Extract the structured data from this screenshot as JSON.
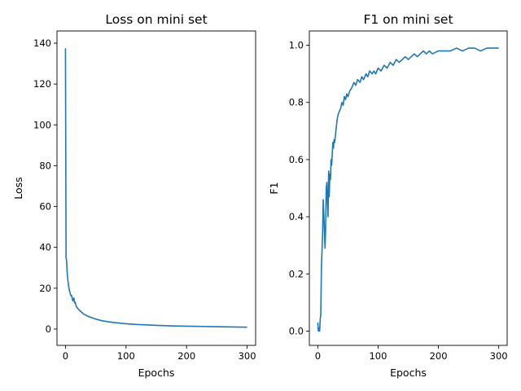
{
  "chart_data": [
    {
      "type": "line",
      "title": "Loss on mini set",
      "xlabel": "Epochs",
      "ylabel": "Loss",
      "xlim": [
        -14,
        314
      ],
      "ylim": [
        -8,
        146
      ],
      "xticks": [
        0,
        100,
        200,
        300
      ],
      "yticks": [
        0,
        20,
        40,
        60,
        80,
        100,
        120,
        140
      ],
      "color": "#1f77b4",
      "grid": false,
      "series": [
        {
          "x": [
            0,
            1,
            2,
            3,
            4,
            5,
            6,
            7,
            8,
            9,
            10,
            11,
            12,
            13,
            14,
            15,
            16,
            17,
            18,
            19,
            20,
            22,
            24,
            26,
            28,
            30,
            33,
            36,
            40,
            45,
            50,
            55,
            60,
            70,
            80,
            90,
            100,
            110,
            120,
            130,
            140,
            150,
            160,
            170,
            180,
            190,
            200,
            220,
            240,
            260,
            280,
            300
          ],
          "y": [
            137.5,
            35,
            33,
            27,
            24,
            21.5,
            19.8,
            18.3,
            17.2,
            16.3,
            16.5,
            15.3,
            13.8,
            14.5,
            15.2,
            12.8,
            13.2,
            12.0,
            11.0,
            10.6,
            10.2,
            9.6,
            8.9,
            8.4,
            7.9,
            7.4,
            6.9,
            6.4,
            5.9,
            5.4,
            4.9,
            4.5,
            4.1,
            3.6,
            3.2,
            2.9,
            2.6,
            2.4,
            2.2,
            2.1,
            1.95,
            1.8,
            1.7,
            1.6,
            1.5,
            1.45,
            1.4,
            1.3,
            1.2,
            1.1,
            1.0,
            0.9
          ]
        }
      ]
    },
    {
      "type": "line",
      "title": "F1 on mini set",
      "xlabel": "Epochs",
      "ylabel": "F1",
      "xlim": [
        -14,
        314
      ],
      "ylim": [
        -0.05,
        1.05
      ],
      "xticks": [
        0,
        100,
        200,
        300
      ],
      "yticks": [
        0.0,
        0.2,
        0.4,
        0.6,
        0.8,
        1.0
      ],
      "color": "#1f77b4",
      "grid": false,
      "series": [
        {
          "x": [
            0,
            1,
            2,
            3,
            4,
            5,
            6,
            7,
            8,
            9,
            10,
            11,
            12,
            13,
            14,
            15,
            16,
            17,
            18,
            19,
            20,
            21,
            22,
            23,
            24,
            25,
            26,
            27,
            28,
            30,
            32,
            34,
            36,
            38,
            40,
            42,
            44,
            46,
            48,
            50,
            53,
            56,
            60,
            63,
            66,
            70,
            73,
            76,
            80,
            83,
            86,
            90,
            93,
            96,
            100,
            105,
            110,
            115,
            120,
            125,
            130,
            135,
            140,
            145,
            150,
            155,
            160,
            165,
            170,
            175,
            180,
            185,
            190,
            200,
            210,
            220,
            230,
            240,
            250,
            260,
            270,
            280,
            290,
            300
          ],
          "y": [
            0.03,
            0.0,
            0.01,
            0.0,
            0.04,
            0.06,
            0.22,
            0.28,
            0.34,
            0.46,
            0.41,
            0.35,
            0.29,
            0.36,
            0.5,
            0.52,
            0.45,
            0.4,
            0.56,
            0.47,
            0.55,
            0.53,
            0.6,
            0.58,
            0.62,
            0.66,
            0.64,
            0.67,
            0.66,
            0.7,
            0.74,
            0.76,
            0.77,
            0.78,
            0.8,
            0.79,
            0.82,
            0.81,
            0.83,
            0.82,
            0.84,
            0.85,
            0.87,
            0.86,
            0.88,
            0.87,
            0.89,
            0.88,
            0.9,
            0.89,
            0.91,
            0.9,
            0.91,
            0.9,
            0.92,
            0.91,
            0.93,
            0.92,
            0.94,
            0.93,
            0.95,
            0.94,
            0.95,
            0.96,
            0.95,
            0.96,
            0.97,
            0.96,
            0.97,
            0.98,
            0.97,
            0.98,
            0.97,
            0.98,
            0.98,
            0.98,
            0.99,
            0.98,
            0.99,
            0.99,
            0.98,
            0.99,
            0.99,
            0.99
          ]
        }
      ]
    }
  ]
}
